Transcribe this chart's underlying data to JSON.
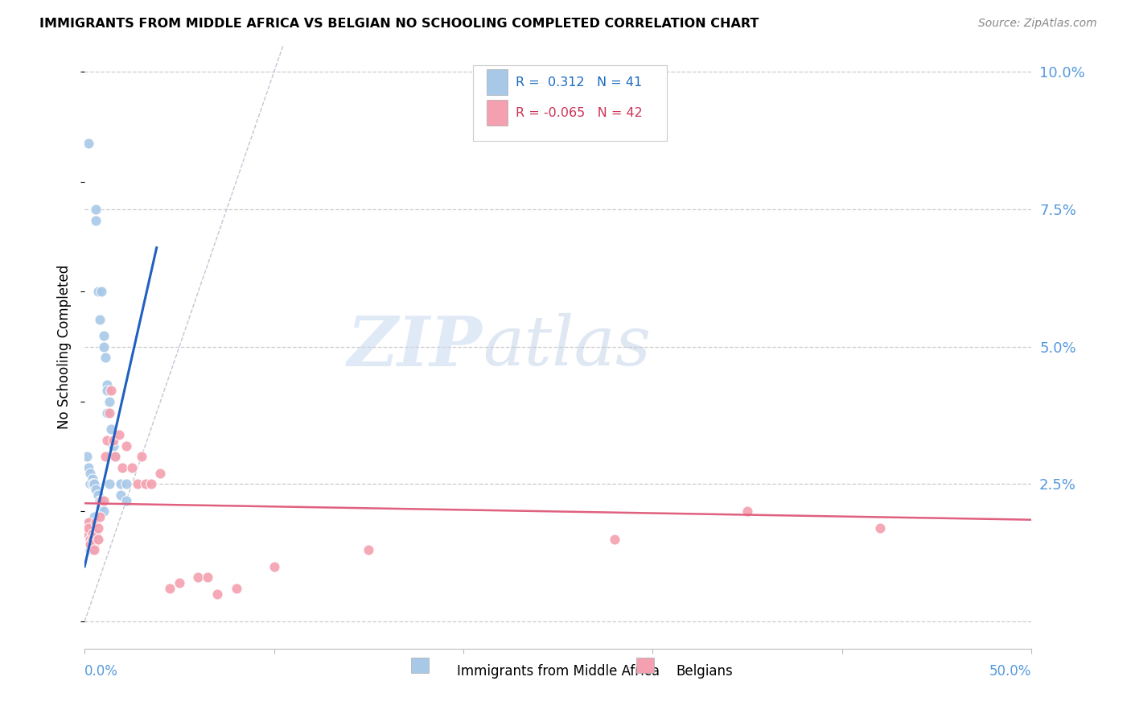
{
  "title": "IMMIGRANTS FROM MIDDLE AFRICA VS BELGIAN NO SCHOOLING COMPLETED CORRELATION CHART",
  "source": "Source: ZipAtlas.com",
  "ylabel": "No Schooling Completed",
  "ytick_vals": [
    0.0,
    0.025,
    0.05,
    0.075,
    0.1
  ],
  "ytick_labels": [
    "",
    "2.5%",
    "5.0%",
    "7.5%",
    "10.0%"
  ],
  "xlim": [
    0,
    0.5
  ],
  "ylim": [
    -0.005,
    0.105
  ],
  "blue_color": "#a8c8e8",
  "pink_color": "#f4a0b0",
  "line_blue_color": "#2060c0",
  "line_pink_color": "#e06080",
  "diag_color": "#b0b8c8",
  "watermark_zip": "ZIP",
  "watermark_atlas": "atlas",
  "blue_line_x0": 0.0,
  "blue_line_y0": 0.01,
  "blue_line_x1": 0.038,
  "blue_line_y1": 0.068,
  "pink_line_x0": 0.0,
  "pink_line_y0": 0.0215,
  "pink_line_x1": 0.5,
  "pink_line_y1": 0.0185,
  "blue_scatter_x": [
    0.002,
    0.006,
    0.006,
    0.007,
    0.008,
    0.009,
    0.01,
    0.01,
    0.011,
    0.012,
    0.012,
    0.012,
    0.013,
    0.014,
    0.015,
    0.016,
    0.001,
    0.002,
    0.003,
    0.003,
    0.004,
    0.004,
    0.005,
    0.006,
    0.007,
    0.008,
    0.009,
    0.01,
    0.002,
    0.003,
    0.004,
    0.005,
    0.005,
    0.006,
    0.003,
    0.004,
    0.013,
    0.019,
    0.019,
    0.022,
    0.022
  ],
  "blue_scatter_y": [
    0.087,
    0.075,
    0.073,
    0.06,
    0.055,
    0.06,
    0.052,
    0.05,
    0.048,
    0.043,
    0.042,
    0.038,
    0.04,
    0.035,
    0.032,
    0.03,
    0.03,
    0.028,
    0.027,
    0.025,
    0.026,
    0.025,
    0.025,
    0.024,
    0.023,
    0.022,
    0.021,
    0.02,
    0.017,
    0.018,
    0.018,
    0.019,
    0.016,
    0.015,
    0.013,
    0.013,
    0.025,
    0.025,
    0.023,
    0.025,
    0.022
  ],
  "pink_scatter_x": [
    0.001,
    0.002,
    0.002,
    0.003,
    0.003,
    0.004,
    0.004,
    0.005,
    0.005,
    0.006,
    0.006,
    0.007,
    0.007,
    0.008,
    0.009,
    0.01,
    0.011,
    0.012,
    0.013,
    0.014,
    0.015,
    0.016,
    0.018,
    0.02,
    0.022,
    0.025,
    0.028,
    0.03,
    0.032,
    0.035,
    0.04,
    0.045,
    0.05,
    0.06,
    0.065,
    0.07,
    0.08,
    0.1,
    0.15,
    0.28,
    0.35,
    0.42
  ],
  "pink_scatter_y": [
    0.016,
    0.018,
    0.017,
    0.015,
    0.014,
    0.016,
    0.015,
    0.014,
    0.013,
    0.018,
    0.016,
    0.017,
    0.015,
    0.019,
    0.022,
    0.022,
    0.03,
    0.033,
    0.038,
    0.042,
    0.033,
    0.03,
    0.034,
    0.028,
    0.032,
    0.028,
    0.025,
    0.03,
    0.025,
    0.025,
    0.027,
    0.006,
    0.007,
    0.008,
    0.008,
    0.005,
    0.006,
    0.01,
    0.013,
    0.015,
    0.02,
    0.017
  ]
}
